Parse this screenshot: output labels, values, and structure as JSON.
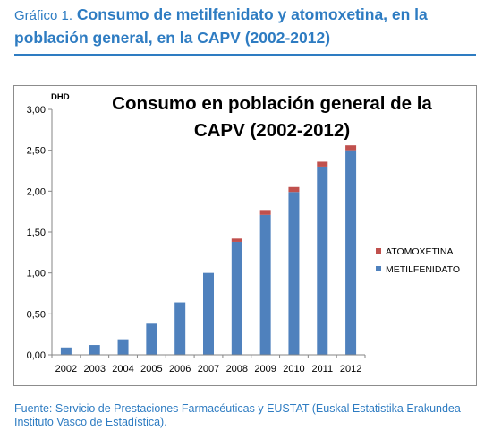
{
  "figure": {
    "prefix": "Gráfico 1.",
    "title": "Consumo de metilfenidato y atomoxetina, en la población general, en la CAPV (2002-2012)",
    "source": "Fuente: Servicio de Prestaciones Farmacéuticas y EUSTAT (Euskal Estatistika Erakundea - Instituto Vasco de Estadística)."
  },
  "chart_data": {
    "type": "bar",
    "stacked": true,
    "title_lines": [
      "Consumo en población general de la",
      "CAPV (2002-2012)"
    ],
    "ylabel": "DHD",
    "ylim": [
      0,
      3
    ],
    "yticks": [
      "0,00",
      "0,50",
      "1,00",
      "1,50",
      "2,00",
      "2,50",
      "3,00"
    ],
    "ytick_values": [
      0,
      0.5,
      1,
      1.5,
      2,
      2.5,
      3
    ],
    "grid": false,
    "legend_position": "right",
    "categories": [
      "2002",
      "2003",
      "2004",
      "2005",
      "2006",
      "2007",
      "2008",
      "2009",
      "2010",
      "2011",
      "2012"
    ],
    "series": [
      {
        "name": "METILFENIDATO",
        "color": "#4f81bd",
        "values": [
          0.09,
          0.12,
          0.19,
          0.38,
          0.64,
          1.0,
          1.38,
          1.71,
          1.99,
          2.3,
          2.5
        ]
      },
      {
        "name": "ATOMOXETINA",
        "color": "#c0504d",
        "values": [
          0,
          0,
          0,
          0,
          0,
          0,
          0.04,
          0.06,
          0.06,
          0.06,
          0.06
        ]
      }
    ],
    "legend_order": [
      "ATOMOXETINA",
      "METILFENIDATO"
    ]
  }
}
